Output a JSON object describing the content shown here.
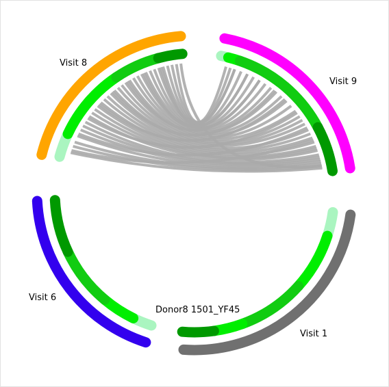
{
  "diagram": {
    "center_label": "Donor8 1501_YF45",
    "visits": [
      {
        "id": "visit8",
        "label": "Visit 8",
        "color": "#ffa500"
      },
      {
        "id": "visit9",
        "label": "Visit 9",
        "color": "#ff00ff"
      },
      {
        "id": "visit1",
        "label": "Visit 1",
        "color": "#707070"
      },
      {
        "id": "visit6",
        "label": "Visit 6",
        "color": "#3300ee"
      }
    ],
    "ring_colors": {
      "light": "#aaf5c0",
      "bright": "#00ee00",
      "medium": "#11cc11",
      "dark": "#009900"
    },
    "link_color": "#aaaaaa"
  }
}
